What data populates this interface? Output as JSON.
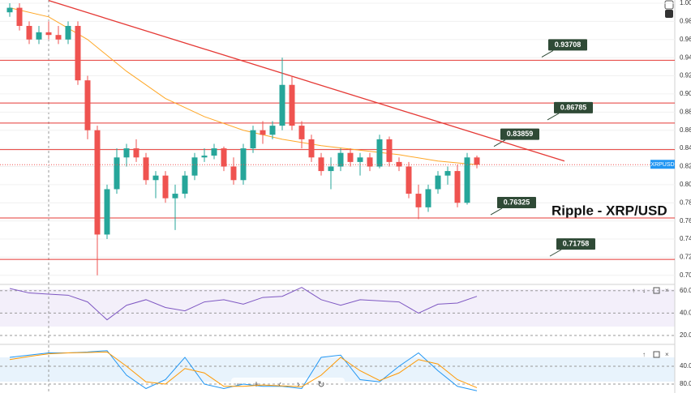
{
  "chart_data": {
    "type": "candlestick",
    "title": "Ripple - XRP/USD",
    "symbol": "XRPUSD",
    "ylim": [
      0.69,
      1.0
    ],
    "yticks": [
      {
        "value": 1.0,
        "label": "1.00"
      },
      0.98,
      0.96,
      0.94,
      0.92,
      {
        "value": 0.9,
        "label": "0.90"
      },
      0.88,
      0.86,
      0.84,
      0.82,
      {
        "value": 0.8,
        "label": "0.80"
      },
      0.78,
      0.76,
      0.74,
      0.72,
      {
        "value": 0.7,
        "label": "0.70"
      }
    ],
    "up_color": "#26a69a",
    "down_color": "#ef5350",
    "candles": [
      [
        0.99,
        1.0,
        0.985,
        0.995
      ],
      [
        0.995,
        1.0,
        0.97,
        0.975
      ],
      [
        0.975,
        0.98,
        0.955,
        0.96
      ],
      [
        0.96,
        0.975,
        0.955,
        0.968
      ],
      [
        0.968,
        0.98,
        0.96,
        0.965
      ],
      [
        0.965,
        0.975,
        0.955,
        0.96
      ],
      [
        0.96,
        0.98,
        0.955,
        0.975
      ],
      [
        0.975,
        0.98,
        0.91,
        0.915
      ],
      [
        0.915,
        0.92,
        0.85,
        0.86
      ],
      [
        0.86,
        0.865,
        0.7,
        0.745
      ],
      [
        0.745,
        0.8,
        0.74,
        0.795
      ],
      [
        0.795,
        0.84,
        0.79,
        0.83
      ],
      [
        0.83,
        0.845,
        0.82,
        0.84
      ],
      [
        0.84,
        0.85,
        0.825,
        0.83
      ],
      [
        0.83,
        0.835,
        0.8,
        0.805
      ],
      [
        0.805,
        0.815,
        0.785,
        0.81
      ],
      [
        0.81,
        0.815,
        0.78,
        0.785
      ],
      [
        0.785,
        0.8,
        0.75,
        0.79
      ],
      [
        0.79,
        0.815,
        0.785,
        0.81
      ],
      [
        0.81,
        0.835,
        0.805,
        0.83
      ],
      [
        0.83,
        0.84,
        0.825,
        0.832
      ],
      [
        0.832,
        0.845,
        0.828,
        0.84
      ],
      [
        0.84,
        0.842,
        0.815,
        0.82
      ],
      [
        0.82,
        0.83,
        0.8,
        0.805
      ],
      [
        0.805,
        0.845,
        0.8,
        0.84
      ],
      [
        0.84,
        0.865,
        0.835,
        0.86
      ],
      [
        0.86,
        0.87,
        0.845,
        0.855
      ],
      [
        0.855,
        0.87,
        0.85,
        0.865
      ],
      [
        0.865,
        0.94,
        0.86,
        0.91
      ],
      [
        0.91,
        0.92,
        0.86,
        0.865
      ],
      [
        0.865,
        0.87,
        0.84,
        0.85
      ],
      [
        0.85,
        0.855,
        0.825,
        0.83
      ],
      [
        0.83,
        0.835,
        0.81,
        0.815
      ],
      [
        0.815,
        0.83,
        0.795,
        0.82
      ],
      [
        0.82,
        0.84,
        0.815,
        0.835
      ],
      [
        0.835,
        0.84,
        0.82,
        0.825
      ],
      [
        0.825,
        0.835,
        0.81,
        0.83
      ],
      [
        0.83,
        0.835,
        0.815,
        0.82
      ],
      [
        0.82,
        0.855,
        0.818,
        0.85
      ],
      [
        0.85,
        0.853,
        0.82,
        0.825
      ],
      [
        0.825,
        0.83,
        0.815,
        0.82
      ],
      [
        0.82,
        0.825,
        0.785,
        0.79
      ],
      [
        0.79,
        0.8,
        0.762,
        0.775
      ],
      [
        0.775,
        0.8,
        0.77,
        0.795
      ],
      [
        0.795,
        0.815,
        0.79,
        0.81
      ],
      [
        0.81,
        0.82,
        0.8,
        0.815
      ],
      [
        0.815,
        0.822,
        0.775,
        0.78
      ],
      [
        0.78,
        0.835,
        0.778,
        0.83
      ],
      [
        0.83,
        0.832,
        0.818,
        0.822
      ]
    ],
    "moving_average": {
      "color": "#ffa726",
      "x": [
        0,
        4,
        8,
        12,
        16,
        20,
        24,
        28,
        32,
        36,
        40,
        44,
        48
      ],
      "values": [
        0.995,
        0.985,
        0.96,
        0.925,
        0.895,
        0.875,
        0.86,
        0.85,
        0.843,
        0.838,
        0.833,
        0.826,
        0.822
      ]
    },
    "trendline": {
      "color": "#e53935",
      "x": [
        4,
        57
      ],
      "values": [
        1.003,
        0.826
      ]
    },
    "level_color": "#e53935",
    "levels": [
      0.93708,
      0.86785,
      0.83859,
      0.76325,
      0.71758
    ],
    "extra_levels": [
      0.89
    ],
    "rsi": {
      "color": "#7e57c2",
      "ylim": [
        20,
        70
      ],
      "yticks": [
        {
          "value": 60,
          "label": "60.00"
        },
        {
          "value": 40,
          "label": "40.00"
        },
        {
          "value": 20,
          "label": "20.00"
        }
      ],
      "x": [
        0,
        2,
        4,
        6,
        8,
        10,
        12,
        14,
        16,
        18,
        20,
        22,
        24,
        26,
        28,
        30,
        32,
        34,
        36,
        38,
        40,
        42,
        44,
        46,
        48
      ],
      "values": [
        62,
        58,
        57,
        56,
        50,
        34,
        47,
        52,
        45,
        42,
        50,
        52,
        48,
        54,
        55,
        63,
        52,
        47,
        52,
        51,
        50,
        40,
        48,
        49,
        55
      ]
    },
    "stochastic": {
      "ylim": [
        0,
        100
      ],
      "yticks": [
        {
          "value": 80,
          "label": "80.00"
        },
        {
          "value": 40,
          "label": "40.00"
        }
      ],
      "x": [
        0,
        2,
        4,
        6,
        8,
        10,
        12,
        14,
        16,
        18,
        20,
        22,
        24,
        26,
        28,
        30,
        32,
        34,
        36,
        38,
        40,
        42,
        44,
        46,
        48
      ],
      "series": [
        {
          "color": "#2196f3",
          "values": [
            20,
            15,
            10,
            10,
            8,
            5,
            60,
            90,
            70,
            20,
            80,
            90,
            80,
            85,
            85,
            90,
            20,
            15,
            70,
            75,
            40,
            10,
            50,
            85,
            95
          ]
        },
        {
          "color": "#ff9800",
          "values": [
            25,
            18,
            12,
            10,
            9,
            8,
            40,
            75,
            80,
            45,
            55,
            85,
            85,
            82,
            84,
            86,
            60,
            20,
            50,
            72,
            55,
            25,
            35,
            70,
            88
          ]
        }
      ]
    }
  }
}
